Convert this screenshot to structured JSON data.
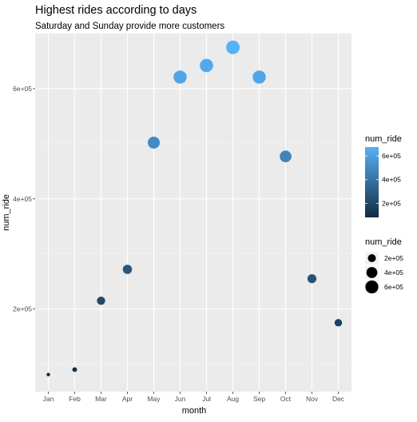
{
  "chart_data": {
    "type": "scatter",
    "title": "Highest rides according to days",
    "subtitle": "Saturday and Sunday provide more customers",
    "xlabel": "month",
    "ylabel": "num_ride",
    "categories": [
      "Jan",
      "Feb",
      "Mar",
      "Apr",
      "May",
      "Jun",
      "Jul",
      "Aug",
      "Sep",
      "Oct",
      "Nov",
      "Dec"
    ],
    "values": [
      81000,
      90000,
      215000,
      272000,
      502000,
      621000,
      642000,
      675000,
      621000,
      477000,
      255000,
      175000
    ],
    "ylim": [
      50000,
      700000
    ],
    "y_ticks": [
      200000,
      400000,
      600000
    ],
    "y_tick_labels": [
      "2e+05",
      "4e+05",
      "6e+05"
    ],
    "grid": true,
    "color_legend": {
      "title": "num_ride",
      "range": [
        81000,
        675000
      ],
      "ticks": [
        200000,
        400000,
        600000
      ],
      "tick_labels": [
        "2e+05",
        "4e+05",
        "6e+05"
      ],
      "low_color": "#132B43",
      "high_color": "#56B1F7"
    },
    "size_legend": {
      "title": "num_ride",
      "values": [
        200000,
        400000,
        600000
      ],
      "labels": [
        "2e+05",
        "4e+05",
        "6e+05"
      ]
    },
    "legend_placement": "right",
    "panel_color": "#EBEBEB"
  }
}
